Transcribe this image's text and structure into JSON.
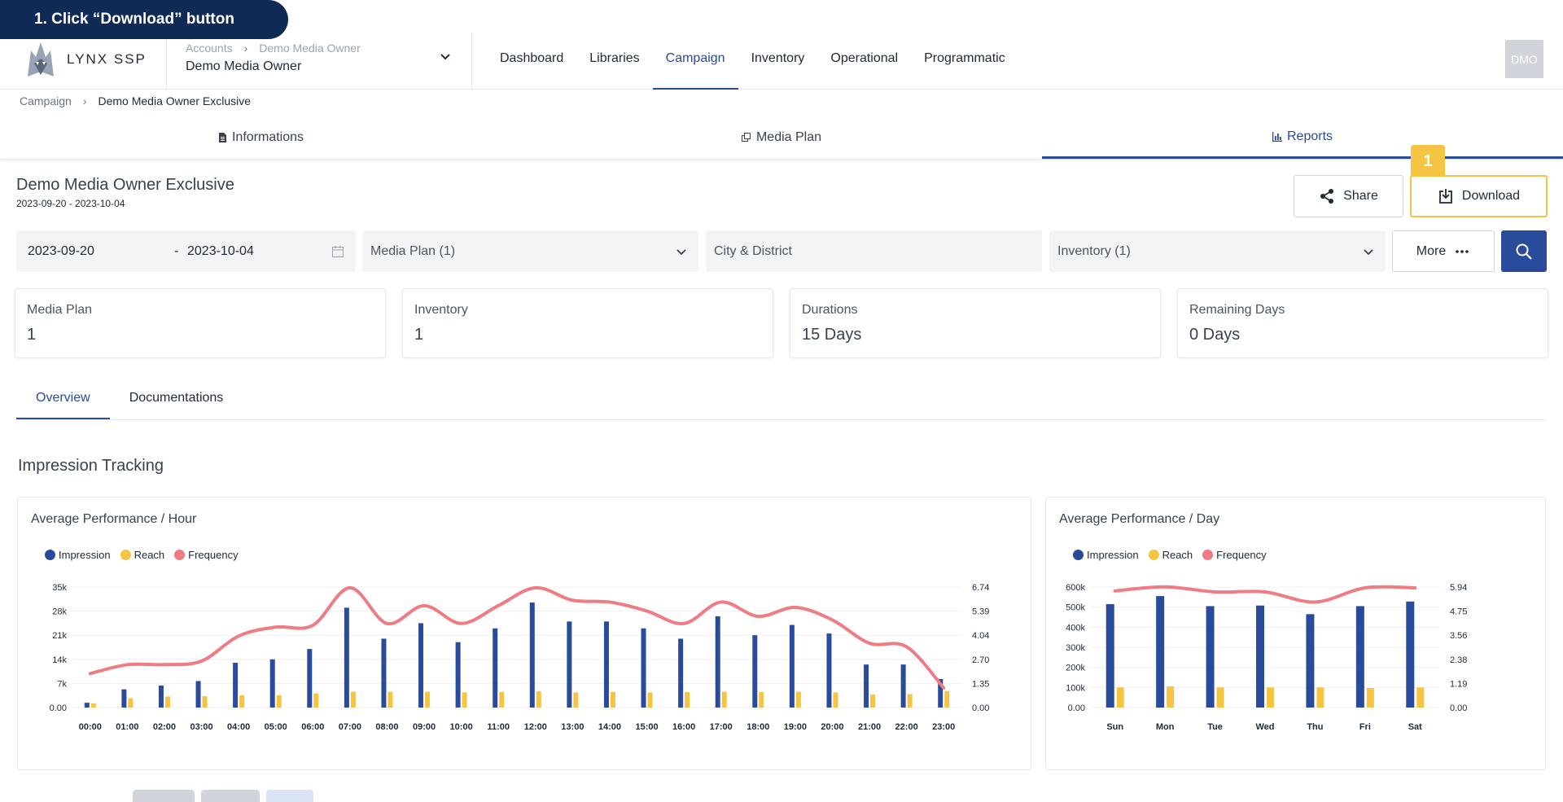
{
  "callout": {
    "text": "1. Click “Download” button",
    "badge": "1"
  },
  "header": {
    "logo_text": "LYNX SSP",
    "account_crumbs": [
      "Accounts",
      "Demo Media Owner"
    ],
    "account_title": "Demo Media Owner",
    "nav": [
      "Dashboard",
      "Libraries",
      "Campaign",
      "Inventory",
      "Operational",
      "Programmatic"
    ],
    "nav_active": "Campaign",
    "avatar": "DMO"
  },
  "breadcrumb": {
    "parent": "Campaign",
    "current": "Demo Media Owner Exclusive"
  },
  "tabs": [
    {
      "label": "Informations",
      "icon": "file-icon"
    },
    {
      "label": "Media Plan",
      "icon": "copy-icon"
    },
    {
      "label": "Reports",
      "icon": "bar-chart-icon",
      "active": true
    }
  ],
  "page": {
    "title": "Demo Media Owner Exclusive",
    "dates": "2023-09-20 - 2023-10-04"
  },
  "actions": {
    "share": "Share",
    "download": "Download"
  },
  "filters": {
    "date_start": "2023-09-20",
    "date_sep": "-",
    "date_end": "2023-10-04",
    "media_plan": "Media Plan (1)",
    "city_placeholder": "City & District",
    "inventory": "Inventory (1)",
    "more": "More"
  },
  "stats": [
    {
      "label": "Media Plan",
      "value": "1"
    },
    {
      "label": "Inventory",
      "value": "1"
    },
    {
      "label": "Durations",
      "value": "15 Days"
    },
    {
      "label": "Remaining Days",
      "value": "0 Days"
    }
  ],
  "subtabs": [
    "Overview",
    "Documentations"
  ],
  "section_title": "Impression Tracking",
  "colors": {
    "impression": "#2a4b9b",
    "reach": "#f6c443",
    "frequency": "#f07b82",
    "accent": "#2a4b9b"
  },
  "chart_data": [
    {
      "type": "bar",
      "title": "Average Performance / Hour",
      "legend": [
        "Impression",
        "Reach",
        "Frequency"
      ],
      "categories": [
        "00:00",
        "01:00",
        "02:00",
        "03:00",
        "04:00",
        "05:00",
        "06:00",
        "07:00",
        "08:00",
        "09:00",
        "10:00",
        "11:00",
        "12:00",
        "13:00",
        "14:00",
        "15:00",
        "16:00",
        "17:00",
        "18:00",
        "19:00",
        "20:00",
        "21:00",
        "22:00",
        "23:00"
      ],
      "y_ticks": [
        "0.00",
        "7k",
        "14k",
        "21k",
        "28k",
        "35k"
      ],
      "y2_ticks": [
        "0.00",
        "1.35",
        "2.70",
        "4.04",
        "5.39",
        "6.74"
      ],
      "ylim": [
        0,
        35000
      ],
      "y2lim": [
        0,
        6.74
      ],
      "series": [
        {
          "name": "Impression",
          "axis": "left",
          "values": [
            1400,
            5300,
            6400,
            7700,
            13000,
            14000,
            17000,
            29000,
            20000,
            24500,
            19000,
            23000,
            30500,
            25000,
            25000,
            23000,
            20000,
            26500,
            21000,
            24000,
            21500,
            12500,
            12500,
            8300
          ]
        },
        {
          "name": "Reach",
          "axis": "left",
          "values": [
            1200,
            2700,
            3200,
            3300,
            3600,
            3600,
            4100,
            4600,
            4600,
            4600,
            4400,
            4500,
            4700,
            4400,
            4500,
            4400,
            4500,
            4600,
            4500,
            4600,
            4400,
            3800,
            3900,
            4800
          ]
        },
        {
          "name": "Frequency",
          "axis": "right",
          "values": [
            1.9,
            2.4,
            2.4,
            2.6,
            4.0,
            4.5,
            4.6,
            6.7,
            4.7,
            5.7,
            4.7,
            5.7,
            6.7,
            6.0,
            5.9,
            5.4,
            4.7,
            5.9,
            5.1,
            5.6,
            4.9,
            3.6,
            3.4,
            1.1
          ]
        }
      ]
    },
    {
      "type": "bar",
      "title": "Average Performance / Day",
      "legend": [
        "Impression",
        "Reach",
        "Frequency"
      ],
      "categories": [
        "Sun",
        "Mon",
        "Tue",
        "Wed",
        "Thu",
        "Fri",
        "Sat"
      ],
      "y_ticks": [
        "0.00",
        "100k",
        "200k",
        "300k",
        "400k",
        "500k",
        "600k"
      ],
      "y2_ticks": [
        "0.00",
        "1.19",
        "2.38",
        "3.56",
        "4.75",
        "5.94"
      ],
      "ylim": [
        0,
        600000
      ],
      "y2lim": [
        0,
        5.94
      ],
      "series": [
        {
          "name": "Impression",
          "axis": "left",
          "values": [
            515000,
            555000,
            505000,
            508000,
            465000,
            505000,
            528000
          ]
        },
        {
          "name": "Reach",
          "axis": "left",
          "values": [
            100000,
            105000,
            100000,
            100000,
            100000,
            97000,
            100000
          ]
        },
        {
          "name": "Frequency",
          "axis": "right",
          "values": [
            5.75,
            5.95,
            5.7,
            5.7,
            5.2,
            5.9,
            5.9
          ]
        }
      ]
    }
  ]
}
